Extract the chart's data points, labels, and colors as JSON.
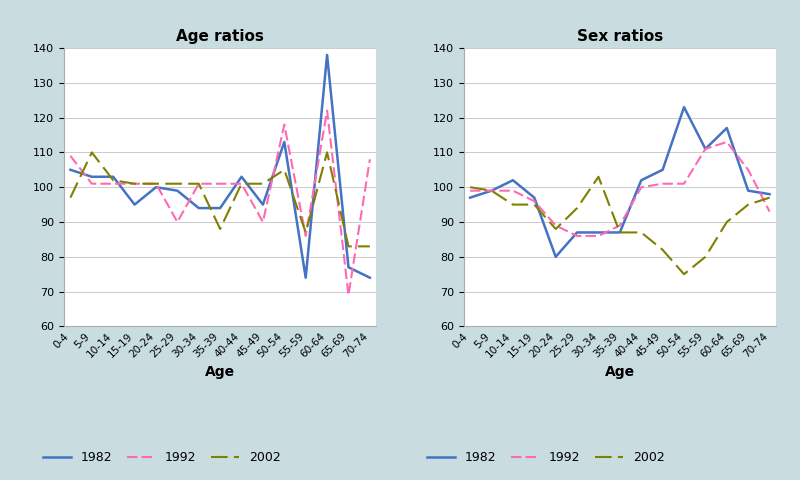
{
  "age_groups": [
    "0-4",
    "5-9",
    "10-14",
    "15-19",
    "20-24",
    "25-29",
    "30-34",
    "35-39",
    "40-44",
    "45-49",
    "50-54",
    "55-59",
    "60-64",
    "65-69",
    "70-74"
  ],
  "age_ratios": {
    "1982": [
      105,
      103,
      103,
      95,
      100,
      99,
      94,
      94,
      103,
      95,
      113,
      74,
      138,
      77,
      74
    ],
    "1992": [
      109,
      101,
      101,
      101,
      101,
      90,
      101,
      101,
      101,
      90,
      118,
      86,
      122,
      69,
      108
    ],
    "2002": [
      97,
      110,
      102,
      101,
      101,
      101,
      101,
      88,
      101,
      101,
      105,
      87,
      110,
      83,
      83
    ]
  },
  "sex_ratios": {
    "1982": [
      97,
      99,
      102,
      97,
      80,
      87,
      87,
      87,
      102,
      105,
      123,
      111,
      117,
      99,
      98
    ],
    "1992": [
      99,
      99,
      99,
      96,
      89,
      86,
      86,
      89,
      100,
      101,
      101,
      111,
      113,
      105,
      93
    ],
    "2002": [
      100,
      99,
      95,
      95,
      88,
      94,
      103,
      87,
      87,
      82,
      75,
      80,
      90,
      95,
      97
    ]
  },
  "colors": {
    "1982": "#4472C4",
    "1992": "#FF69B4",
    "2002": "#808000"
  },
  "title_age": "Age ratios",
  "title_sex": "Sex ratios",
  "xlabel": "Age",
  "ylim": [
    60,
    140
  ],
  "yticks": [
    60,
    70,
    80,
    90,
    100,
    110,
    120,
    130,
    140
  ],
  "bg_color": "#c9dce0",
  "plot_bg": "#ffffff",
  "legend_labels": [
    "1982",
    "1992",
    "2002"
  ]
}
